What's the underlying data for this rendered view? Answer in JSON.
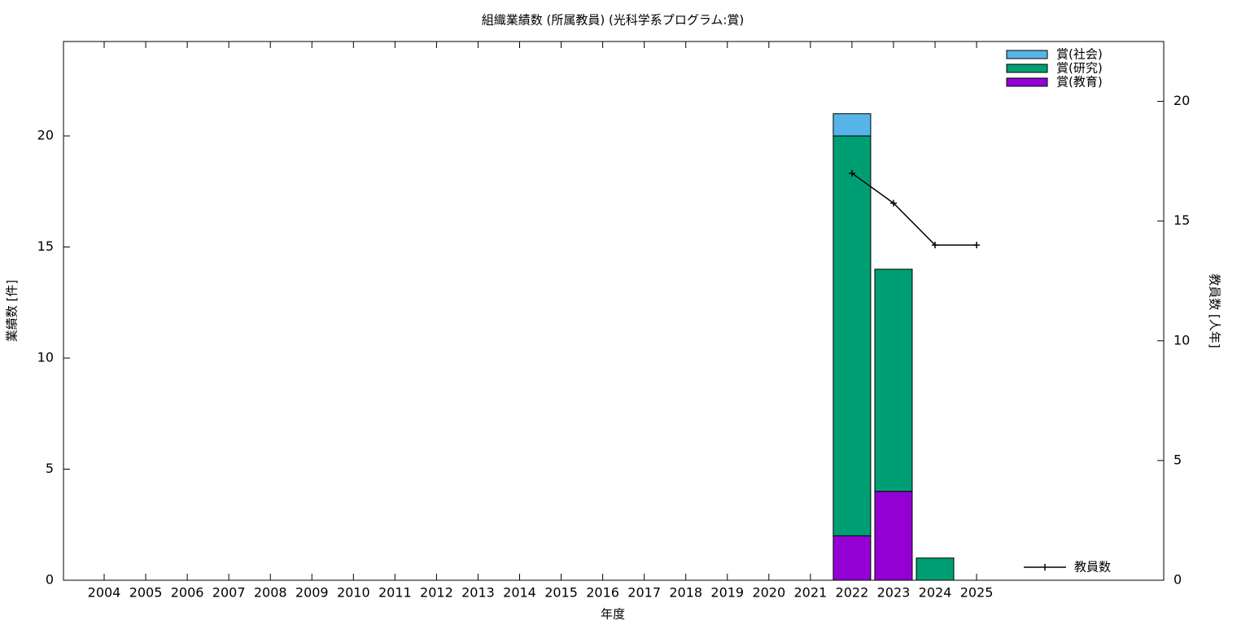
{
  "chart_data": {
    "type": "bar",
    "stacked": true,
    "title": "組織業績数 (所属教員) (光科学系プログラム:賞)",
    "x_label": "年度",
    "y_label": "業績数 [件]",
    "y2_label": "教員数 [人年]",
    "categories": [
      "2004",
      "2005",
      "2006",
      "2007",
      "2008",
      "2009",
      "2010",
      "2011",
      "2012",
      "2013",
      "2014",
      "2015",
      "2016",
      "2017",
      "2018",
      "2019",
      "2020",
      "2021",
      "2022",
      "2023",
      "2024",
      "2025"
    ],
    "series": [
      {
        "name": "賞(教育)",
        "color": "#9400d3",
        "values": [
          0,
          0,
          0,
          0,
          0,
          0,
          0,
          0,
          0,
          0,
          0,
          0,
          0,
          0,
          0,
          0,
          0,
          0,
          2,
          4,
          0,
          0
        ]
      },
      {
        "name": "賞(研究)",
        "color": "#009e73",
        "values": [
          0,
          0,
          0,
          0,
          0,
          0,
          0,
          0,
          0,
          0,
          0,
          0,
          0,
          0,
          0,
          0,
          0,
          0,
          18,
          10,
          1,
          0
        ]
      },
      {
        "name": "賞(社会)",
        "color": "#56b4e9",
        "values": [
          0,
          0,
          0,
          0,
          0,
          0,
          0,
          0,
          0,
          0,
          0,
          0,
          0,
          0,
          0,
          0,
          0,
          0,
          1,
          0,
          0,
          0
        ]
      },
      {
        "name": "教員数",
        "color": "#000000",
        "type": "line",
        "axis": "y2",
        "values": [
          null,
          null,
          null,
          null,
          null,
          null,
          null,
          null,
          null,
          null,
          null,
          null,
          null,
          null,
          null,
          null,
          null,
          null,
          17,
          15.75,
          14,
          14
        ]
      }
    ],
    "ylim": [
      0,
      24.25
    ],
    "yticks": [
      0,
      5,
      10,
      15,
      20
    ],
    "y2lim": [
      0,
      22.5
    ],
    "y2ticks": [
      0,
      5,
      10,
      15,
      20
    ]
  }
}
